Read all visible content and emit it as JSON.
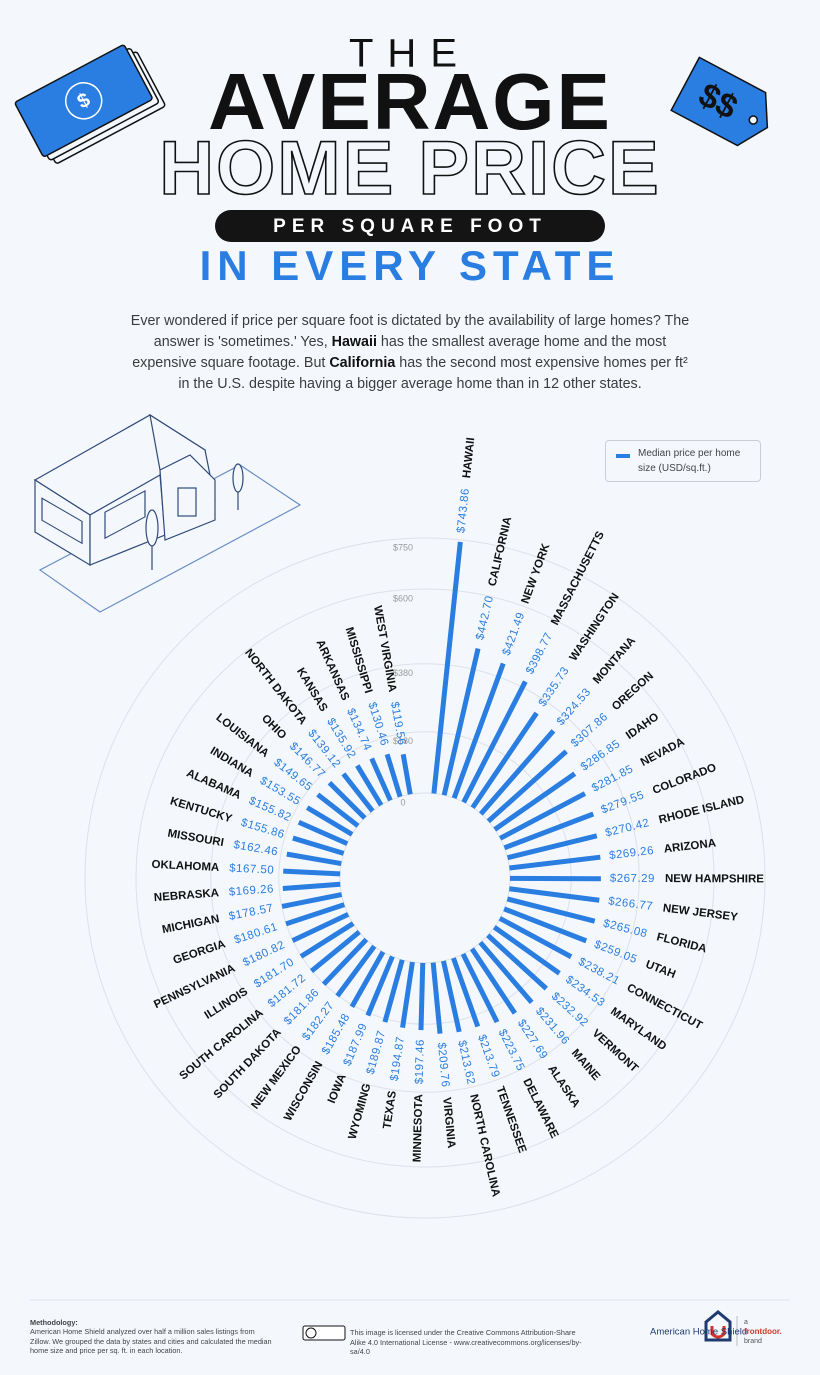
{
  "header": {
    "line1": "THE",
    "line2": "AVERAGE",
    "line3": "HOME PRICE",
    "badge": "PER SQUARE FOOT",
    "line4": "IN EVERY STATE"
  },
  "intro": [
    "Ever wondered if price per square foot is dictated by the availability of large homes? The answer is 'sometimes.' Yes, ",
    "Hawaii",
    " has the smallest average home and the most expensive square footage. But ",
    "California",
    " has the second most expensive homes per ft² in the U.S. despite having a bigger average home than in 12 other states."
  ],
  "chart_data": {
    "type": "radial_bar",
    "categories": [
      "HAWAII",
      "CALIFORNIA",
      "NEW YORK",
      "MASSACHUSETTS",
      "WASHINGTON",
      "MONTANA",
      "OREGON",
      "IDAHO",
      "NEVADA",
      "COLORADO",
      "RHODE ISLAND",
      "ARIZONA",
      "NEW HAMPSHIRE",
      "NEW JERSEY",
      "FLORIDA",
      "UTAH",
      "CONNECTICUT",
      "MARYLAND",
      "VERMONT",
      "MAINE",
      "ALASKA",
      "DELAWARE",
      "TENNESSEE",
      "NORTH CAROLINA",
      "VIRGINIA",
      "MINNESOTA",
      "TEXAS",
      "WYOMING",
      "IOWA",
      "WISCONSIN",
      "NEW MEXICO",
      "SOUTH DAKOTA",
      "SOUTH CAROLINA",
      "ILLINOIS",
      "PENNSYLVANIA",
      "GEORGIA",
      "MICHIGAN",
      "NEBRASKA",
      "OKLAHOMA",
      "MISSOURI",
      "KENTUCKY",
      "ALABAMA",
      "INDIANA",
      "LOUISIANA",
      "OHIO",
      "NORTH DAKOTA",
      "KANSAS",
      "ARKANSAS",
      "MISSISSIPPI",
      "WEST VIRGINIA"
    ],
    "series": [
      {
        "name": "Median price per home size (USD/sq.ft.)",
        "color": "#2a7de1",
        "values": [
          743.86,
          442.7,
          421.49,
          398.77,
          335.73,
          324.53,
          307.86,
          286.85,
          281.85,
          279.55,
          270.42,
          269.26,
          267.29,
          266.77,
          265.08,
          259.05,
          238.21,
          234.53,
          232.92,
          231.96,
          227.69,
          223.75,
          213.79,
          213.62,
          209.76,
          197.46,
          194.87,
          189.87,
          187.99,
          185.48,
          182.27,
          181.86,
          181.72,
          181.7,
          180.82,
          180.61,
          178.57,
          169.26,
          167.5,
          162.46,
          155.86,
          155.82,
          153.55,
          149.65,
          146.77,
          139.12,
          135.92,
          134.74,
          130.46,
          119.56
        ],
        "value_labels": [
          "$743.86",
          "$442.70",
          "$421.49",
          "$398.77",
          "$335.73",
          "$324.53",
          "$307.86",
          "$286.85",
          "$281.85",
          "$279.55",
          "$270.42",
          "$269.26",
          "$267.29",
          "$266.77",
          "$265.08",
          "$259.05",
          "$238.21",
          "$234.53",
          "$232.92",
          "$231.96",
          "$227.69",
          "$223.75",
          "$213.79",
          "$213.62",
          "$209.76",
          "$197.46",
          "$194.87",
          "$189.87",
          "$187.99",
          "$185.48",
          "$182.27",
          "$181.86",
          "$181.72",
          "$181.70",
          "$180.82",
          "$180.61",
          "$178.57",
          "$169.26",
          "$167.50",
          "$162.46",
          "$155.86",
          "$155.82",
          "$153.55",
          "$149.65",
          "$146.77",
          "$139.12",
          "$135.92",
          "$134.74",
          "$130.46",
          "$119.56"
        ]
      }
    ],
    "ylim": [
      0,
      750
    ],
    "yticks": [
      0,
      {
        "value": 180,
        "label": "$180"
      },
      {
        "value": 380,
        "label": "$380"
      },
      {
        "value": 600,
        "label": "$600"
      },
      {
        "value": 750,
        "label": "$750"
      }
    ],
    "grid": true,
    "legend": "upper right"
  },
  "footer": {
    "methodology_title": "Methodology:",
    "methodology": "American Home Shield analyzed over half a million sales listings from Zillow. We grouped the data by states and cities and calculated the median home size and price per sq. ft. in each location.",
    "license": "This image is licensed under the Creative Commons Attribution-Share Alike 4.0 International License - www.creativecommons.org/licenses/by-sa/4.0",
    "brand": "American Home Shield",
    "tagline_a": "a",
    "tagline_brand": "frontdoor.",
    "tagline_b": "brand"
  }
}
